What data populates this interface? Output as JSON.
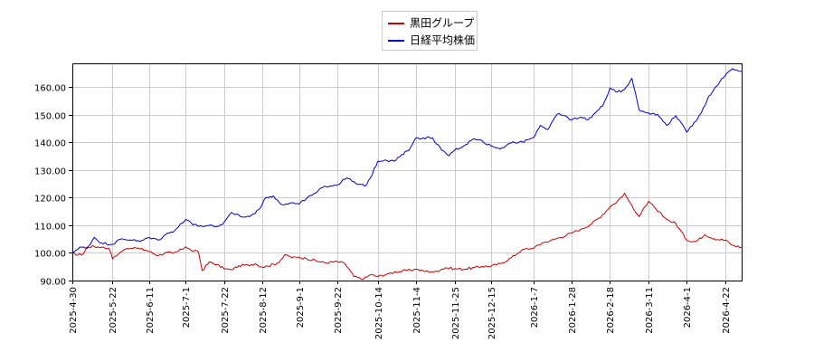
{
  "chart_data": {
    "type": "line",
    "title": "",
    "xlabel": "",
    "ylabel": "",
    "ylim": [
      90,
      168.5
    ],
    "yticks": [
      90,
      100,
      110,
      120,
      130,
      140,
      150,
      160
    ],
    "ytick_labels": [
      "90.00",
      "100.00",
      "110.00",
      "120.00",
      "130.00",
      "140.00",
      "150.00",
      "160.00"
    ],
    "xlim": [
      "2025-04-30",
      "2026-05-01"
    ],
    "xtick_labels": [
      "2025-4-30",
      "2025-5-22",
      "2025-6-11",
      "2025-7-1",
      "2025-7-22",
      "2025-8-12",
      "2025-9-1",
      "2025-9-22",
      "2025-10-14",
      "2025-11-4",
      "2025-11-25",
      "2025-12-15",
      "2026-1-7",
      "2026-1-28",
      "2026-2-18",
      "2026-3-11",
      "2026-4-1",
      "2026-4-22"
    ],
    "xtick_dates": [
      "2025-04-30",
      "2025-05-22",
      "2025-06-11",
      "2025-07-01",
      "2025-07-22",
      "2025-08-12",
      "2025-09-01",
      "2025-09-22",
      "2025-10-14",
      "2025-11-04",
      "2025-11-25",
      "2025-12-15",
      "2026-01-07",
      "2026-01-28",
      "2026-02-18",
      "2026-03-11",
      "2026-04-01",
      "2026-04-22"
    ],
    "grid": true,
    "legend_position": "top-center",
    "series": [
      {
        "name": "黒田グループ",
        "color": "#cc0000",
        "x": [
          "2025-04-30",
          "2025-05-02",
          "2025-05-06",
          "2025-05-08",
          "2025-05-12",
          "2025-05-16",
          "2025-05-20",
          "2025-05-22",
          "2025-05-26",
          "2025-05-30",
          "2025-06-03",
          "2025-06-06",
          "2025-06-09",
          "2025-06-11",
          "2025-06-16",
          "2025-06-20",
          "2025-06-24",
          "2025-06-27",
          "2025-07-01",
          "2025-07-04",
          "2025-07-08",
          "2025-07-10",
          "2025-07-14",
          "2025-07-18",
          "2025-07-22",
          "2025-07-26",
          "2025-07-30",
          "2025-08-04",
          "2025-08-08",
          "2025-08-12",
          "2025-08-15",
          "2025-08-20",
          "2025-08-25",
          "2025-08-28",
          "2025-09-01",
          "2025-09-05",
          "2025-09-10",
          "2025-09-15",
          "2025-09-22",
          "2025-09-26",
          "2025-10-01",
          "2025-10-06",
          "2025-10-10",
          "2025-10-14",
          "2025-10-20",
          "2025-10-24",
          "2025-10-30",
          "2025-11-04",
          "2025-11-08",
          "2025-11-14",
          "2025-11-20",
          "2025-11-25",
          "2025-12-01",
          "2025-12-06",
          "2025-12-10",
          "2025-12-15",
          "2025-12-20",
          "2025-12-26",
          "2026-01-01",
          "2026-01-07",
          "2026-01-12",
          "2026-01-17",
          "2026-01-22",
          "2026-01-28",
          "2026-02-02",
          "2026-02-07",
          "2026-02-12",
          "2026-02-18",
          "2026-02-22",
          "2026-02-26",
          "2026-03-01",
          "2026-03-06",
          "2026-03-11",
          "2026-03-16",
          "2026-03-21",
          "2026-03-26",
          "2026-04-01",
          "2026-04-06",
          "2026-04-11",
          "2026-04-16",
          "2026-04-22",
          "2026-04-26",
          "2026-05-01"
        ],
        "y": [
          100.0,
          99.2,
          99.6,
          102.1,
          102.3,
          102.0,
          101.6,
          97.8,
          100.2,
          101.6,
          102.0,
          101.4,
          101.0,
          100.5,
          99.0,
          100.1,
          99.8,
          100.6,
          102.2,
          100.9,
          100.2,
          93.6,
          96.8,
          95.8,
          94.2,
          93.9,
          95.4,
          95.6,
          96.1,
          94.8,
          95.2,
          96.3,
          99.4,
          98.2,
          98.4,
          97.9,
          97.2,
          96.4,
          96.8,
          96.1,
          91.4,
          90.4,
          92.1,
          91.4,
          92.6,
          93.1,
          93.6,
          94.1,
          93.4,
          93.2,
          94.6,
          94.3,
          94.1,
          94.7,
          95.1,
          95.2,
          96.1,
          98.2,
          101.2,
          101.6,
          103.6,
          104.6,
          105.6,
          107.2,
          108.6,
          110.1,
          112.6,
          116.6,
          118.6,
          121.6,
          118.1,
          113.1,
          118.6,
          115.1,
          112.1,
          110.6,
          104.6,
          104.1,
          106.6,
          105.1,
          104.6,
          102.8,
          102.0
        ]
      },
      {
        "name": "日経平均株価",
        "color": "#0000cc",
        "x": [
          "2025-04-30",
          "2025-05-04",
          "2025-05-08",
          "2025-05-12",
          "2025-05-16",
          "2025-05-22",
          "2025-05-27",
          "2025-06-02",
          "2025-06-06",
          "2025-06-11",
          "2025-06-16",
          "2025-06-20",
          "2025-06-25",
          "2025-07-01",
          "2025-07-05",
          "2025-07-10",
          "2025-07-15",
          "2025-07-19",
          "2025-07-22",
          "2025-07-26",
          "2025-07-31",
          "2025-08-05",
          "2025-08-10",
          "2025-08-14",
          "2025-08-18",
          "2025-08-22",
          "2025-08-27",
          "2025-09-01",
          "2025-09-05",
          "2025-09-10",
          "2025-09-15",
          "2025-09-22",
          "2025-09-27",
          "2025-10-02",
          "2025-10-07",
          "2025-10-10",
          "2025-10-14",
          "2025-10-18",
          "2025-10-23",
          "2025-10-28",
          "2025-11-01",
          "2025-11-04",
          "2025-11-08",
          "2025-11-13",
          "2025-11-18",
          "2025-11-22",
          "2025-11-25",
          "2025-12-01",
          "2025-12-05",
          "2025-12-10",
          "2025-12-15",
          "2025-12-20",
          "2025-12-25",
          "2026-01-01",
          "2026-01-07",
          "2026-01-11",
          "2026-01-15",
          "2026-01-20",
          "2026-01-24",
          "2026-01-28",
          "2026-02-02",
          "2026-02-06",
          "2026-02-10",
          "2026-02-14",
          "2026-02-18",
          "2026-02-22",
          "2026-02-26",
          "2026-03-02",
          "2026-03-06",
          "2026-03-11",
          "2026-03-16",
          "2026-03-21",
          "2026-03-26",
          "2026-04-01",
          "2026-04-05",
          "2026-04-09",
          "2026-04-13",
          "2026-04-17",
          "2026-04-22",
          "2026-04-26",
          "2026-05-01"
        ],
        "y": [
          100.0,
          102.1,
          101.6,
          105.6,
          103.6,
          103.1,
          105.1,
          104.6,
          104.1,
          105.6,
          104.6,
          106.6,
          108.1,
          112.1,
          110.1,
          109.6,
          110.1,
          109.6,
          111.1,
          114.6,
          113.1,
          113.1,
          115.6,
          120.1,
          120.6,
          117.6,
          118.1,
          117.6,
          119.6,
          121.6,
          124.1,
          124.6,
          127.1,
          125.1,
          124.1,
          127.1,
          133.1,
          133.6,
          133.1,
          135.6,
          138.1,
          141.6,
          141.6,
          141.6,
          137.1,
          135.1,
          137.1,
          139.1,
          141.1,
          140.6,
          138.6,
          137.6,
          139.6,
          140.1,
          141.6,
          146.1,
          144.6,
          150.1,
          149.6,
          148.1,
          149.1,
          148.1,
          150.6,
          153.1,
          159.6,
          158.1,
          159.1,
          163.1,
          151.6,
          150.6,
          150.1,
          146.1,
          149.6,
          143.6,
          147.1,
          150.6,
          156.6,
          160.1,
          164.1,
          166.6,
          165.6
        ]
      }
    ]
  }
}
